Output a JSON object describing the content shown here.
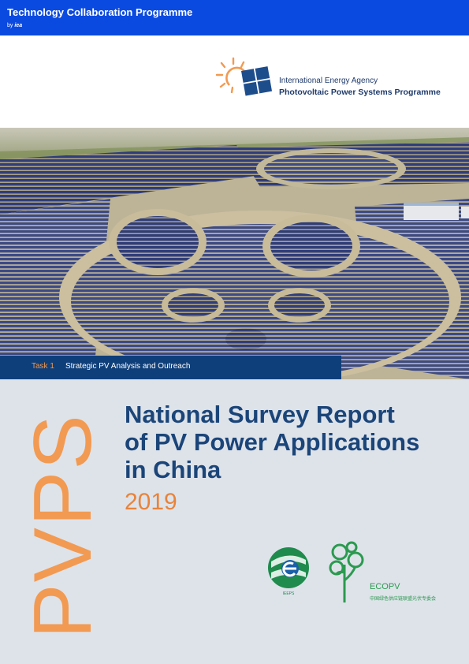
{
  "header": {
    "programme": "Technology Collaboration Programme",
    "by": "by",
    "by_brand": "iea"
  },
  "iea_logo": {
    "line1": "International Energy Agency",
    "line2": "Photovoltaic Power Systems Programme"
  },
  "task": {
    "number": "Task 1",
    "title": "Strategic PV Analysis and Outreach"
  },
  "cover": {
    "side_word": "PVPS",
    "title_line1": "National Survey Report",
    "title_line2": "of PV Power Applications",
    "title_line3": "in China",
    "year": "2019"
  },
  "logos": {
    "left_caption": "IEEPS",
    "right_name": "ECOPV",
    "right_sub": "中国绿色供应链联盟光伏专委会"
  },
  "colors": {
    "top_bar": "#0b4ae0",
    "task_bar": "#0f3f7a",
    "accent_orange": "#f29a51",
    "title_blue": "#1b4579",
    "lower_background": "#dee3ea"
  }
}
